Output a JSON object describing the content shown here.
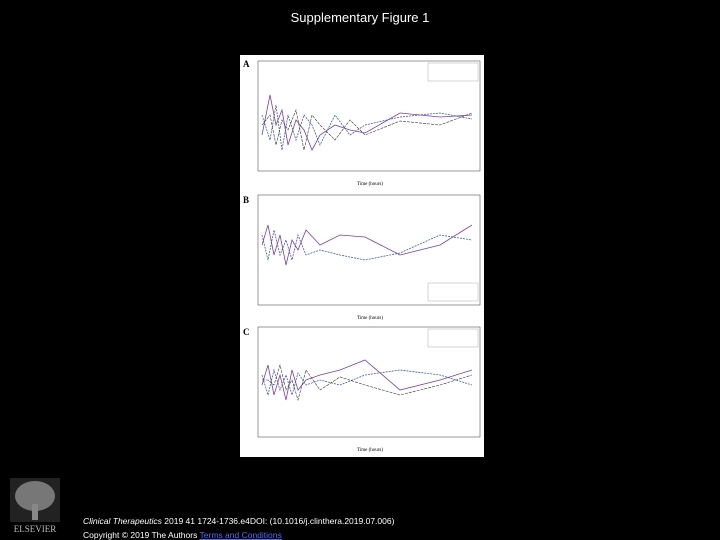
{
  "header": {
    "title": "Supplementary Figure 1"
  },
  "figure": {
    "panels": [
      {
        "label": "A",
        "x_axis_label": "Time (hours)"
      },
      {
        "label": "B",
        "x_axis_label": "Time (hours)"
      },
      {
        "label": "C",
        "x_axis_label": "Time (hours)"
      }
    ]
  },
  "logo": {
    "text": "ELSEVIER"
  },
  "citation": {
    "journal": "Clinical Therapeutics",
    "details": "2019 41 1724-1736.e4DOI: (10.1016/j.clinthera.2019.07.006)"
  },
  "copyright": {
    "text": "Copyright © 2019 The Authors",
    "link": "Terms and Conditions"
  }
}
